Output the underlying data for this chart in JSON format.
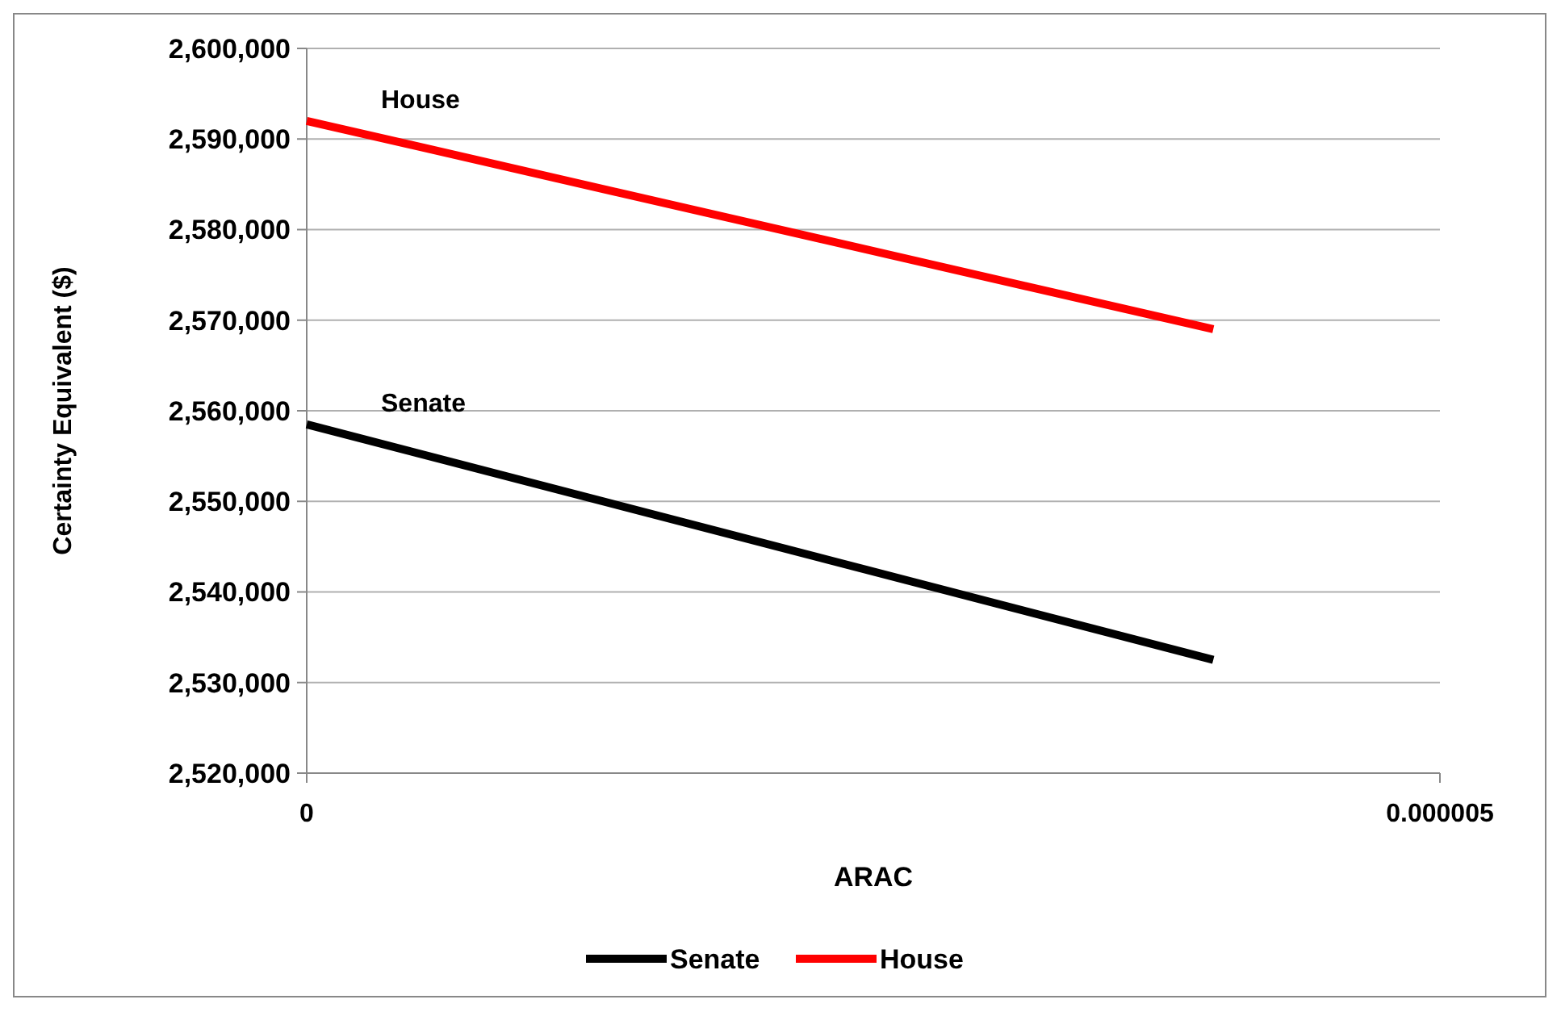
{
  "chart_data": {
    "type": "line",
    "xlabel": "ARAC",
    "ylabel": "Certainty Equivalent ($)",
    "x": [
      0,
      4e-06
    ],
    "series": [
      {
        "name": "Senate",
        "color": "#000000",
        "values": [
          2558500,
          2532500
        ]
      },
      {
        "name": "House",
        "color": "#ff0000",
        "values": [
          2592000,
          2569000
        ]
      }
    ],
    "xlim": [
      0,
      5e-06
    ],
    "xticks": [
      0,
      {
        "value": 5e-06,
        "label": "0.000005"
      }
    ],
    "ylim": [
      2520000,
      2600000
    ],
    "yticks": [
      {
        "value": 2520000,
        "label": "2,520,000"
      },
      {
        "value": 2530000,
        "label": "2,530,000"
      },
      {
        "value": 2540000,
        "label": "2,540,000"
      },
      {
        "value": 2550000,
        "label": "2,550,000"
      },
      {
        "value": 2560000,
        "label": "2,560,000"
      },
      {
        "value": 2570000,
        "label": "2,570,000"
      },
      {
        "value": 2580000,
        "label": "2,580,000"
      },
      {
        "value": 2590000,
        "label": "2,590,000"
      },
      {
        "value": 2600000,
        "label": "2,600,000"
      }
    ],
    "grid": "y",
    "legend": "bottom",
    "marker": "none",
    "line_style": "solid"
  }
}
